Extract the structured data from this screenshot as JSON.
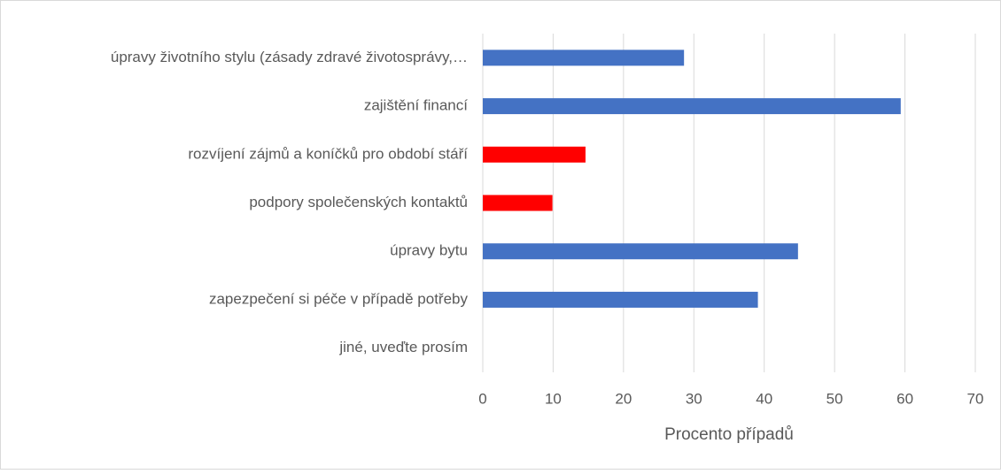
{
  "chart_data": {
    "type": "barh",
    "categories": [
      "úpravy životního stylu (zásady zdravé životosprávy,…",
      "zajištění financí",
      "rozvíjení zájmů a koníčků pro období stáří",
      "podpory společenských kontaktů",
      "úpravy bytu",
      "zapezpečení si péče v případě potřeby",
      "jiné, uveďte prosím"
    ],
    "values": [
      28.6,
      59.4,
      14.6,
      9.9,
      44.8,
      39.1,
      0
    ],
    "colors": [
      "#4472c4",
      "#4472c4",
      "#ff0000",
      "#ff0000",
      "#4472c4",
      "#4472c4",
      "#4472c4"
    ],
    "xlabel": "Procento případů",
    "xlim": [
      0,
      70
    ],
    "xticks": [
      0,
      10,
      20,
      30,
      40,
      50,
      60,
      70
    ],
    "grid": true
  }
}
